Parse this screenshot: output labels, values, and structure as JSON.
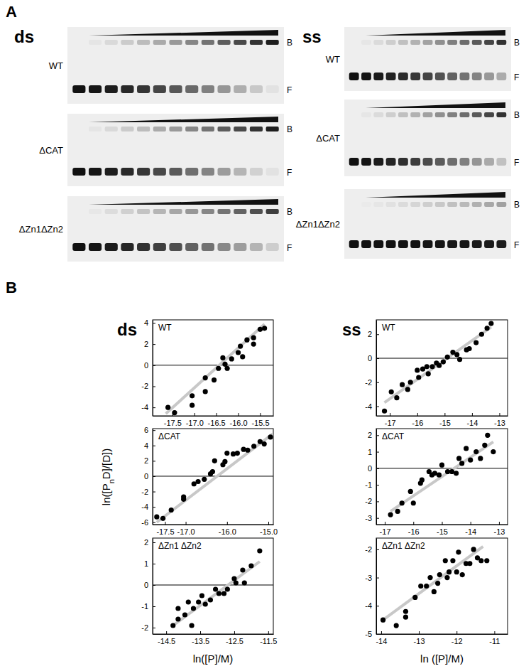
{
  "figure": {
    "panels": [
      "A",
      "B"
    ],
    "gels": {
      "columns": [
        {
          "label": "ds",
          "rows": [
            "WT",
            "ΔCAT",
            "ΔZn1ΔZn2"
          ]
        },
        {
          "label": "ss",
          "rows": [
            "WT",
            "ΔCAT",
            "ΔZn1ΔZn2"
          ]
        }
      ],
      "bound": "B",
      "free": "F"
    },
    "panel_b_columns": [
      "ds",
      "ss"
    ],
    "y_label": [
      "ln([P",
      "n",
      "D]/[D])"
    ]
  },
  "chart_data": [
    {
      "type": "scatter",
      "title": "WT",
      "xlim": [
        -17.95,
        -15.2
      ],
      "ylim": [
        -4.8,
        4.3
      ],
      "xticks": [
        -17.5,
        {
          "value": -17,
          "label": "-17.0"
        },
        -16.5,
        {
          "value": -16,
          "label": "-16.0"
        },
        -15.5
      ],
      "yticks": [
        -4,
        -2,
        0,
        2,
        4
      ],
      "hline": 0,
      "series": [
        {
          "type": "scatter",
          "color": "#000000",
          "marker": "circle",
          "x": [
            -17.6,
            -17.45,
            -17.05,
            -17.05,
            -16.75,
            -16.75,
            -16.55,
            -16.45,
            -16.35,
            -16.3,
            -16.25,
            -16.15,
            -16.0,
            -15.95,
            -15.9,
            -15.8,
            -15.65,
            -15.65,
            -15.5,
            -15.4
          ],
          "values": [
            -4.0,
            -4.5,
            -3.8,
            -2.9,
            -2.5,
            -1.2,
            -1.4,
            -0.3,
            0.7,
            0.1,
            -0.3,
            0.6,
            1.2,
            1.8,
            0.8,
            2.4,
            2.0,
            2.6,
            3.4,
            3.5
          ]
        },
        {
          "type": "line",
          "color": "#c8c8c8",
          "x": [
            -17.65,
            -15.4
          ],
          "values": [
            -4.6,
            3.9
          ]
        }
      ]
    },
    {
      "type": "scatter",
      "title": "WT",
      "xlim": [
        -17.5,
        -12.7
      ],
      "ylim": [
        -4.8,
        3.2
      ],
      "xticks": [
        -17,
        -16,
        -15,
        -14,
        -13
      ],
      "yticks": [
        -4,
        -2,
        0,
        2
      ],
      "hline": 0,
      "series": [
        {
          "type": "scatter",
          "color": "#000000",
          "marker": "circle",
          "x": [
            -17.2,
            -16.95,
            -16.75,
            -16.55,
            -16.35,
            -16.25,
            -16.0,
            -15.95,
            -15.8,
            -15.65,
            -15.6,
            -15.45,
            -15.3,
            -15.2,
            -15.05,
            -14.9,
            -14.7,
            -14.55,
            -14.45,
            -14.2,
            -14.1,
            -13.85,
            -13.65,
            -13.45,
            -13.3
          ],
          "values": [
            -4.4,
            -2.8,
            -3.3,
            -2.2,
            -2.6,
            -2.0,
            -1.0,
            -1.6,
            -0.9,
            -0.7,
            -1.3,
            -0.7,
            -0.4,
            -0.6,
            -0.3,
            0.1,
            0.5,
            0.3,
            -0.1,
            0.7,
            0.8,
            1.3,
            2.0,
            2.5,
            2.9
          ]
        },
        {
          "type": "line",
          "color": "#c8c8c8",
          "x": [
            -17.2,
            -13.3
          ],
          "values": [
            -3.7,
            2.6
          ]
        }
      ]
    },
    {
      "type": "scatter",
      "title": "ΔCAT",
      "xlim": [
        -17.8,
        -14.88
      ],
      "ylim": [
        -6.3,
        6.2
      ],
      "xticks": [
        -17.5,
        {
          "value": -17,
          "label": "-17.0"
        },
        {
          "value": -16,
          "label": "-16.0"
        },
        {
          "value": -15,
          "label": "-15.0"
        }
      ],
      "yticks": [
        -6,
        -4,
        -2,
        0,
        2,
        4,
        6
      ],
      "hline": 0,
      "series": [
        {
          "type": "scatter",
          "color": "#000000",
          "marker": "circle",
          "x": [
            -17.7,
            -17.55,
            -17.35,
            -17.05,
            -17.05,
            -16.8,
            -16.7,
            -16.55,
            -16.4,
            -16.35,
            -16.3,
            -16.1,
            -16.05,
            -16.0,
            -15.85,
            -15.75,
            -15.6,
            -15.5,
            -15.35,
            -15.2,
            -15.1,
            -14.95
          ],
          "values": [
            -5.3,
            -5.5,
            -4.4,
            -3.0,
            -2.7,
            -1.0,
            -0.7,
            -0.4,
            0.3,
            0.6,
            2.0,
            1.5,
            1.9,
            3.0,
            2.9,
            3.0,
            3.5,
            3.4,
            3.9,
            4.5,
            4.2,
            5.1
          ]
        },
        {
          "type": "line",
          "color": "#c8c8c8",
          "x": [
            -17.7,
            -14.9
          ],
          "values": [
            -6.0,
            5.5
          ]
        }
      ]
    },
    {
      "type": "scatter",
      "title": "ΔCAT",
      "xlim": [
        -17.3,
        -12.7
      ],
      "ylim": [
        -3.4,
        2.4
      ],
      "xticks": [
        -17,
        -16,
        -15,
        -14,
        -13
      ],
      "yticks": [
        -3,
        -2,
        -1,
        0,
        1,
        2
      ],
      "hline": 0,
      "series": [
        {
          "type": "scatter",
          "color": "#000000",
          "marker": "circle",
          "x": [
            -16.8,
            -16.55,
            -16.4,
            -16.1,
            -16.0,
            -15.75,
            -15.7,
            -15.45,
            -15.35,
            -15.25,
            -15.1,
            -15.0,
            -14.8,
            -14.65,
            -14.5,
            -14.4,
            -14.3,
            -14.15,
            -14.0,
            -13.8,
            -13.65,
            -13.5,
            -13.4,
            -13.2
          ],
          "values": [
            -2.8,
            -2.6,
            -2.1,
            -1.4,
            -2.1,
            -0.9,
            -0.7,
            -0.2,
            -0.4,
            -0.3,
            -0.4,
            0.2,
            -0.2,
            -0.2,
            -0.3,
            0.6,
            0.3,
            1.2,
            0.5,
            1.0,
            0.6,
            1.4,
            2.0,
            1.0
          ]
        },
        {
          "type": "line",
          "color": "#c8c8c8",
          "x": [
            -16.8,
            -13.2
          ],
          "values": [
            -2.6,
            1.6
          ]
        }
      ]
    },
    {
      "type": "scatter",
      "title": "ΔZn1 ΔZn2",
      "x_label": "ln([P]/M)",
      "xlim": [
        -14.9,
        -11.35
      ],
      "ylim": [
        -2.3,
        2.2
      ],
      "xticks": [
        -14.5,
        -13.5,
        -12.5,
        -11.5
      ],
      "yticks": [
        -2,
        -1,
        0,
        1,
        2
      ],
      "hline": 0,
      "series": [
        {
          "type": "scatter",
          "color": "#000000",
          "marker": "circle",
          "x": [
            -14.3,
            -14.15,
            -14.15,
            -13.95,
            -13.85,
            -13.75,
            -13.7,
            -13.55,
            -13.45,
            -13.35,
            -13.2,
            -13.05,
            -12.95,
            -12.8,
            -12.7,
            -12.5,
            -12.45,
            -12.25,
            -12.2,
            -12.0,
            -11.75
          ],
          "values": [
            -1.9,
            -1.1,
            -1.6,
            -1.4,
            -0.8,
            -1.9,
            -1.1,
            -0.8,
            -0.5,
            -0.9,
            -0.7,
            -0.2,
            -0.4,
            -0.4,
            -0.2,
            0.3,
            0.1,
            0.7,
            0.1,
            0.9,
            1.6
          ]
        },
        {
          "type": "line",
          "color": "#c8c8c8",
          "x": [
            -14.3,
            -11.75
          ],
          "values": [
            -1.9,
            1.1
          ]
        }
      ]
    },
    {
      "type": "scatter",
      "title": "ΔZn1 ΔZn2",
      "x_label": "ln ([P]/M)",
      "xlim": [
        -14.13,
        -10.65
      ],
      "ylim": [
        -5.0,
        -1.6
      ],
      "xticks": [
        -14,
        -13,
        -12,
        -11
      ],
      "yticks": [
        -5,
        -4,
        -3,
        -2
      ],
      "series": [
        {
          "type": "scatter",
          "color": "#000000",
          "marker": "circle",
          "x": [
            -13.95,
            -13.6,
            -13.35,
            -13.35,
            -13.1,
            -12.95,
            -12.8,
            -12.7,
            -12.6,
            -12.5,
            -12.45,
            -12.3,
            -12.25,
            -12.2,
            -12.1,
            -12.0,
            -11.95,
            -11.85,
            -11.75,
            -11.65,
            -11.55,
            -11.45,
            -11.35,
            -11.2
          ],
          "values": [
            -4.5,
            -4.7,
            -4.2,
            -4.4,
            -3.7,
            -3.3,
            -3.3,
            -3.0,
            -3.5,
            -3.2,
            -2.9,
            -2.4,
            -3.0,
            -2.8,
            -2.4,
            -2.8,
            -2.1,
            -2.9,
            -2.5,
            -2.5,
            -2.0,
            -2.3,
            -2.4,
            -2.4
          ]
        },
        {
          "type": "line",
          "color": "#c8c8c8",
          "x": [
            -13.95,
            -11.3
          ],
          "values": [
            -4.5,
            -1.9
          ]
        }
      ]
    }
  ]
}
